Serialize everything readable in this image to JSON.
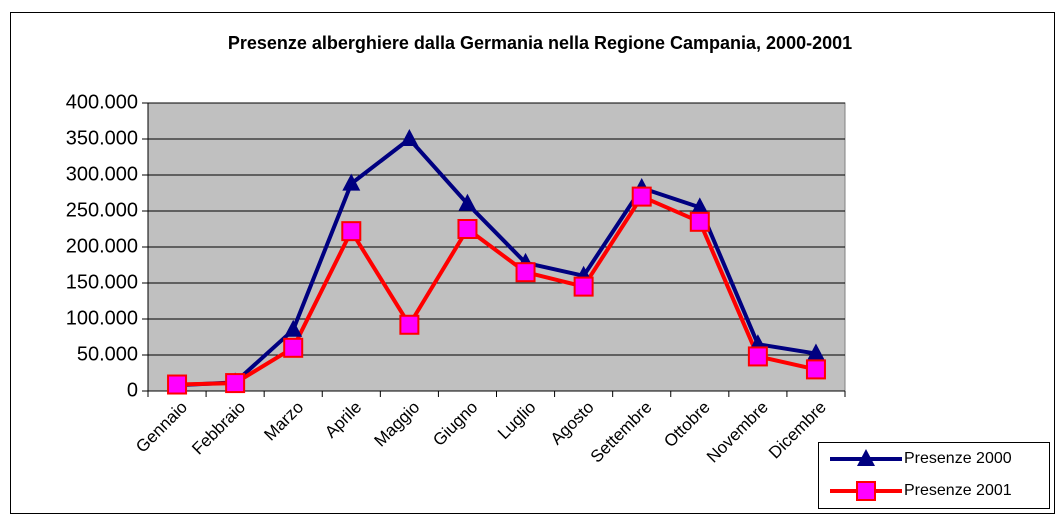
{
  "chart_data": {
    "type": "line",
    "title": "Presenze alberghiere dalla Germania nella Regione Campania, 2000-2001",
    "categories": [
      "Gennaio",
      "Febbraio",
      "Marzo",
      "Aprile",
      "Maggio",
      "Giugno",
      "Luglio",
      "Agosto",
      "Settembre",
      "Ottobre",
      "Novembre",
      "Dicembre"
    ],
    "series": [
      {
        "name": "Presenze 2000",
        "color": "#000080",
        "marker": "triangle",
        "values": [
          8000,
          12000,
          85000,
          288000,
          350000,
          260000,
          178000,
          160000,
          282000,
          255000,
          65000,
          52000
        ]
      },
      {
        "name": "Presenze 2001",
        "color": "#ff0000",
        "marker": "square",
        "marker_color": "#ff00ff",
        "values": [
          9000,
          11000,
          60000,
          222000,
          92000,
          225000,
          165000,
          145000,
          270000,
          235000,
          48000,
          30000
        ]
      }
    ],
    "ylim": [
      0,
      400000
    ],
    "yticks": [
      0,
      {
        "value": 50000,
        "label": "50.000"
      },
      {
        "value": 100000,
        "label": "100.000"
      },
      {
        "value": 150000,
        "label": "150.000"
      },
      {
        "value": 200000,
        "label": "200.000"
      },
      {
        "value": 250000,
        "label": "250.000"
      },
      {
        "value": 300000,
        "label": "300.000"
      },
      {
        "value": 350000,
        "label": "350.000"
      },
      {
        "value": 400000,
        "label": "400.000"
      }
    ],
    "grid": true,
    "plot_background": "#c0c0c0",
    "legend": "bottom-right"
  }
}
